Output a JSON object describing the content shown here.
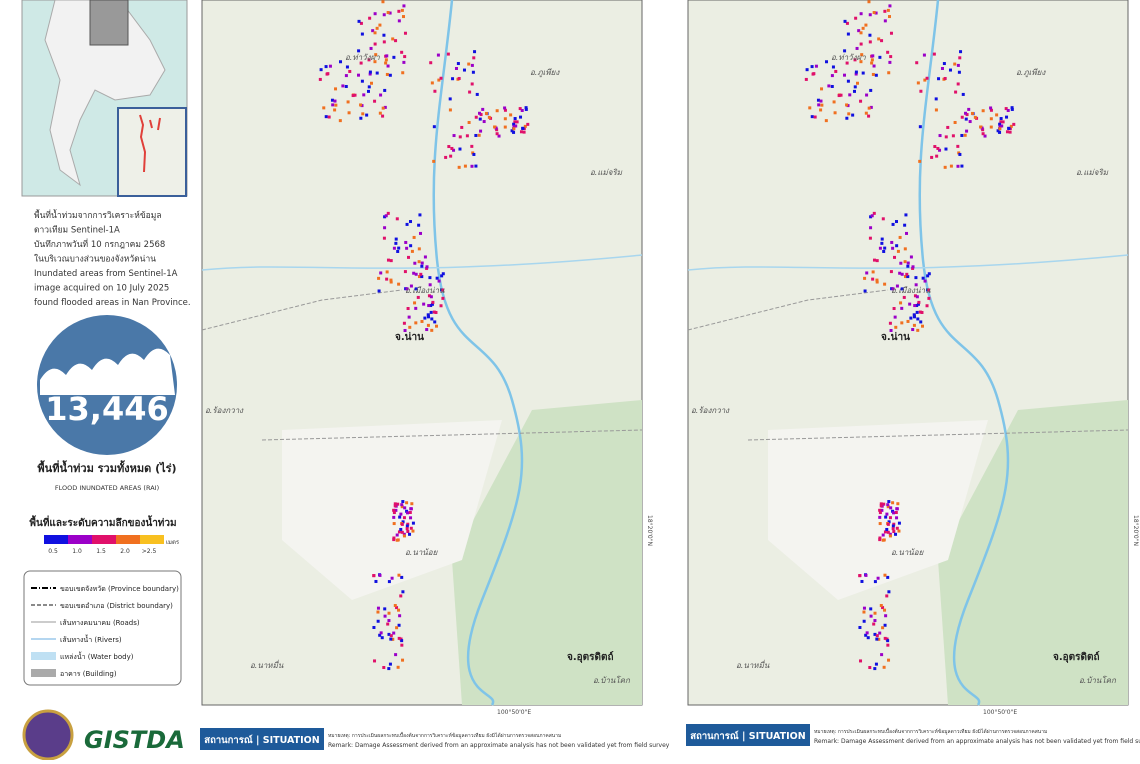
{
  "sidebar": {
    "description": [
      "พื้นที่น้ำท่วมจากการวิเคราะห์ข้อมูล",
      "ดาวเทียม Sentinel-1A",
      "บันทึกภาพวันที่ 10 กรกฎาคม 2568",
      "ในบริเวณบางส่วนของจังหวัดน่าน",
      "Inundated areas from Sentinel-1A",
      "image acquired on 10 July 2025",
      "found flooded areas in Nan Province."
    ],
    "total_area": "13,446",
    "total_label_th": "พื้นที่น้ำท่วม รวมทั้งหมด (ไร่)",
    "total_label_en": "FLOOD INUNDATED AREAS (RAI)",
    "depth_title": "พื้นที่และระดับความลึกของน้ำท่วม",
    "depth_scale": [
      "0.5",
      "1.0",
      "1.5",
      "2.0",
      ">2.5"
    ],
    "depth_unit": "เมตร",
    "legend": [
      "ขอบเขตจังหวัด (Province boundary)",
      "ขอบเขตอำเภอ (District boundary)",
      "เส้นทางคมนาคม (Roads)",
      "เส้นทางน้ำ (Rivers)",
      "แหล่งน้ำ (Water body)",
      "อาคาร (Building)"
    ],
    "logo": "GISTDA"
  },
  "map": {
    "labels": [
      "อ.ท่าวังผา",
      "อ.ภูเพียง",
      "อ.แม่จริม",
      "อ.เมืองน่าน",
      "จ.น่าน",
      "อ.ร้องกวาง",
      "อ.นาน้อย",
      "อ.นาหมื่น",
      "จ.อุตรดิตถ์",
      "อ.บ้านโคก"
    ],
    "lon_label": "100°50'0\"E",
    "lat_label": "18°20'0\"N"
  },
  "footer": {
    "badge": "สถานการณ์ | SITUATION",
    "note_th": "หมายเหตุ: การประเมินผลกระทบเบื้องต้นจากการวิเคราะห์ข้อมูลดาวเทียม ยังมิได้ผ่านการตรวจสอบภาคสนาม",
    "note_en": "Remark: Damage Assessment derived from an approximate analysis has not been validated yet from field survey"
  }
}
